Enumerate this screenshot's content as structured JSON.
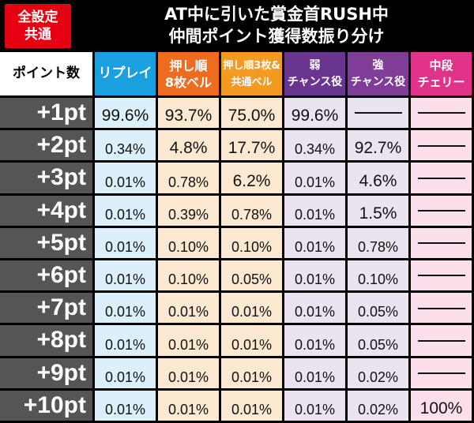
{
  "badge": {
    "line1": "全設定",
    "line2": "共通"
  },
  "title": {
    "line1": "AT中に引いた賞金首RUSH中",
    "line2": "仲間ポイント獲得数振り分け"
  },
  "columns": [
    {
      "l1": "ポイント数",
      "l2": ""
    },
    {
      "l1": "リプレイ",
      "l2": ""
    },
    {
      "l1": "押し順",
      "l2": "8枚ベル"
    },
    {
      "l1": "押し順3枚&",
      "l2": "共通ベル"
    },
    {
      "l1": "弱",
      "l2": "チャンス役"
    },
    {
      "l1": "強",
      "l2": "チャンス役"
    },
    {
      "l1": "中段",
      "l2": "チェリー"
    }
  ],
  "rows": [
    {
      "pt": "+1pt",
      "vals": [
        "99.6%",
        "93.7%",
        "75.0%",
        "99.6%",
        "—",
        "—"
      ]
    },
    {
      "pt": "+2pt",
      "vals": [
        "0.34%",
        "4.8%",
        "17.7%",
        "0.34%",
        "92.7%",
        "—"
      ]
    },
    {
      "pt": "+3pt",
      "vals": [
        "0.01%",
        "0.78%",
        "6.2%",
        "0.01%",
        "4.6%",
        "—"
      ]
    },
    {
      "pt": "+4pt",
      "vals": [
        "0.01%",
        "0.39%",
        "0.78%",
        "0.01%",
        "1.5%",
        "—"
      ]
    },
    {
      "pt": "+5pt",
      "vals": [
        "0.01%",
        "0.10%",
        "0.10%",
        "0.01%",
        "0.78%",
        "—"
      ]
    },
    {
      "pt": "+6pt",
      "vals": [
        "0.01%",
        "0.10%",
        "0.05%",
        "0.01%",
        "0.10%",
        "—"
      ]
    },
    {
      "pt": "+7pt",
      "vals": [
        "0.01%",
        "0.01%",
        "0.01%",
        "0.01%",
        "0.05%",
        "—"
      ]
    },
    {
      "pt": "+8pt",
      "vals": [
        "0.01%",
        "0.01%",
        "0.01%",
        "0.01%",
        "0.05%",
        "—"
      ]
    },
    {
      "pt": "+9pt",
      "vals": [
        "0.01%",
        "0.01%",
        "0.01%",
        "0.01%",
        "0.02%",
        "—"
      ]
    },
    {
      "pt": "+10pt",
      "vals": [
        "0.01%",
        "0.01%",
        "0.01%",
        "0.01%",
        "0.02%",
        "100%"
      ]
    }
  ]
}
